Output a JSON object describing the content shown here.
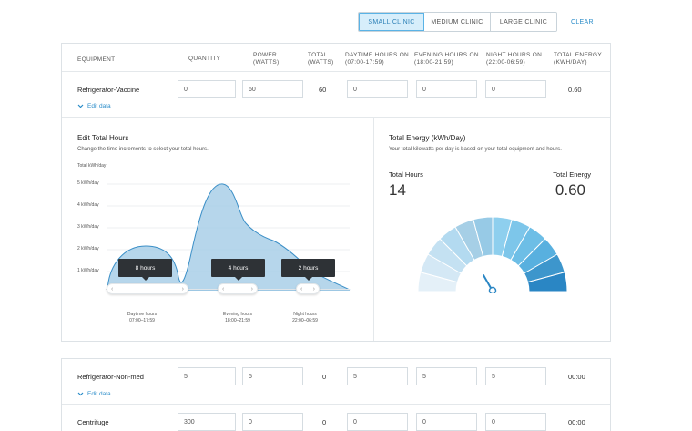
{
  "clinic_sizes": [
    "SMALL CLINIC",
    "MEDIUM CLINIC",
    "LARGE CLINIC"
  ],
  "clear_label": "CLEAR",
  "headers": {
    "equipment": "EQUIPMENT",
    "quantity": "QUANTITY",
    "power": [
      "POWER",
      "(WATTS)"
    ],
    "total": [
      "TOTAL",
      "(WATTS)"
    ],
    "daytime": [
      "DAYTIME HOURS ON",
      "(07:00-17:59)"
    ],
    "evening": [
      "EVENING HOURS ON",
      "(18:00-21:59)"
    ],
    "night": [
      "NIGHT HOURS ON",
      "(22:00-06:59)"
    ],
    "energy": [
      "TOTAL ENERGY",
      "(KWH/DAY)"
    ]
  },
  "rows": [
    {
      "name": "Refrigerator-Vaccine",
      "quantity": "0",
      "power": "60",
      "total": "60",
      "day": "0",
      "evening": "0",
      "night": "0",
      "energy": "0.60"
    },
    {
      "name": "Refrigerator-Non-med",
      "quantity": "5",
      "power": "5",
      "total": "0",
      "day": "5",
      "evening": "5",
      "night": "5",
      "energy": "00:00"
    },
    {
      "name": "Centrifuge",
      "quantity": "300",
      "power": "0",
      "total": "0",
      "day": "0",
      "evening": "0",
      "night": "0",
      "energy": "00:00"
    }
  ],
  "edit_data_label": "Edit data",
  "edit_hours": {
    "title": "Edit Total Hours",
    "description": "Change the time increments to select your total hours.",
    "y_title": "Total kWh/day",
    "y_ticks": [
      "5 kWh/day",
      "4 kWh/day",
      "3 kWh/day",
      "2 kWh/day",
      "1 kWh/day"
    ],
    "tooltips": [
      "8 hours",
      "4 hours",
      "2 hours"
    ],
    "periods": [
      {
        "name": "Daytime hours",
        "range": "07:00–17:59"
      },
      {
        "name": "Evening hours",
        "range": "18:00–21:59"
      },
      {
        "name": "Night hours",
        "range": "22:00–06:59"
      }
    ]
  },
  "total_energy": {
    "title": "Total Energy (kWh/Day)",
    "description": "Your total kilowatts per day is based on your total equipment and hours.",
    "hours_label": "Total Hours",
    "hours_value": "14",
    "energy_label": "Total Energy",
    "energy_value": "0.60",
    "gauge_colors": [
      "#e4f0f8",
      "#d4e8f5",
      "#c4e1f2",
      "#b3daf0",
      "#a6cfe6",
      "#97cae6",
      "#8ecfee",
      "#7dc6ea",
      "#6dbee6",
      "#58b0df",
      "#3d96cc",
      "#2a86c4"
    ]
  },
  "colors": {
    "accent": "#2a8cc9",
    "area_fill": "#a9cfe8",
    "area_stroke": "#3b8fc7"
  }
}
